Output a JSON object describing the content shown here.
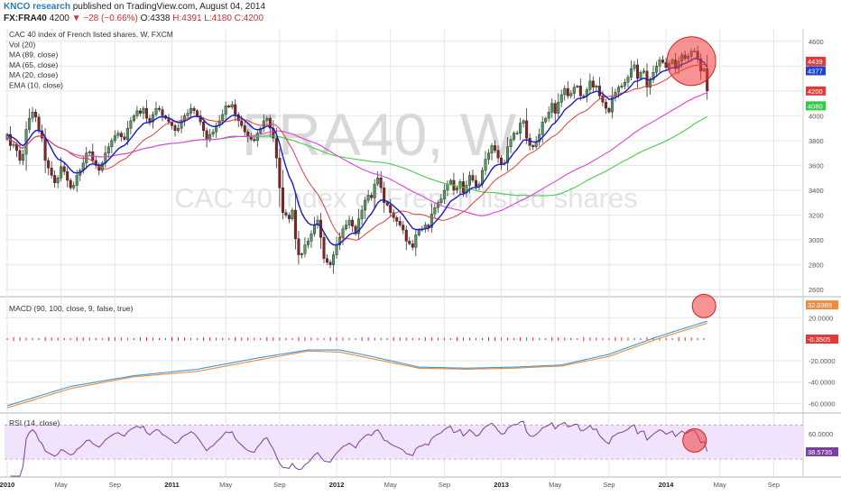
{
  "header": {
    "author": "KNCO research",
    "published": "published on TradingView.com, August 04, 2014",
    "symbol": "FX:FRA40",
    "last": "4200",
    "change": "▼ −28 (−0.66%)",
    "open": "O:4338",
    "high": "H:4391",
    "low": "L:4180",
    "close": "C:4200"
  },
  "watermark": {
    "big": "FRA40, W",
    "small": "CAC 40 index of French listed shares"
  },
  "legend": [
    "CAC 40 index of French listed shares, W, FXCM",
    "Vol (20)",
    "MA (89, close)",
    "MA (65, close)",
    "MA (20, close)",
    "EMA (10, close)"
  ],
  "macd_label": "MACD (90, 100, close, 9, false, true)",
  "rsi_label": "RSI (14, close)",
  "colors": {
    "up": "#4e9a5a",
    "down": "#8e1f1f",
    "ema10": "#1a1acc",
    "ma20": "#e04040",
    "ma65": "#e040e0",
    "ma89": "#4cc94c",
    "macd": "#3a9ad9",
    "signal": "#f08a3c",
    "hist": "#d32f2f",
    "rsi": "#7b3fa0",
    "circle": "#f03a3a",
    "grid": "#e6e6e6"
  },
  "chart_data": [
    {
      "type": "line",
      "title": "CAC 40 index of French listed shares, W, FXCM",
      "x_ticks": [
        "2010",
        "May",
        "Sep",
        "2011",
        "May",
        "Sep",
        "2012",
        "May",
        "Sep",
        "2013",
        "May",
        "Sep",
        "2014",
        "May",
        "Sep"
      ],
      "ylim": [
        2550,
        4700
      ],
      "y_ticks": [
        2600,
        2800,
        3000,
        3200,
        3400,
        3600,
        3800,
        4000,
        4200,
        4400,
        4600
      ],
      "price_labels": [
        {
          "value": "4439",
          "color": "#e53935"
        },
        {
          "value": "4377",
          "color": "#1e3fd8"
        },
        {
          "value": "4200",
          "color": "#e53935"
        },
        {
          "value": "4080",
          "color": "#2ecc40"
        }
      ],
      "date_range": [
        "2010-01",
        "2014-08"
      ],
      "series": [
        {
          "type": "candlestick",
          "close": [
            3850,
            3760,
            3770,
            3720,
            3640,
            3690,
            3890,
            3980,
            4030,
            3990,
            3880,
            3820,
            3640,
            3580,
            3520,
            3460,
            3500,
            3590,
            3550,
            3480,
            3420,
            3440,
            3520,
            3560,
            3620,
            3700,
            3710,
            3640,
            3600,
            3560,
            3620,
            3700,
            3750,
            3800,
            3840,
            3860,
            3830,
            3810,
            3900,
            3960,
            4000,
            4040,
            4020,
            4060,
            3980,
            3950,
            4010,
            4060,
            4050,
            4000,
            3980,
            3950,
            3920,
            3880,
            3900,
            3960,
            4000,
            4020,
            4060,
            4040,
            4000,
            3950,
            3880,
            3810,
            3850,
            3870,
            3920,
            3960,
            4010,
            4080,
            4070,
            4090,
            4010,
            3960,
            3920,
            3870,
            3830,
            3810,
            3800,
            3860,
            3900,
            3960,
            3980,
            3900,
            3820,
            3660,
            3420,
            3220,
            3200,
            3170,
            3240,
            3010,
            2880,
            2890,
            2960,
            2990,
            3050,
            3120,
            3160,
            3020,
            2850,
            2820,
            2800,
            2880,
            2960,
            3020,
            3090,
            3120,
            3160,
            3110,
            3050,
            3170,
            3240,
            3320,
            3360,
            3340,
            3450,
            3500,
            3420,
            3300,
            3280,
            3220,
            3180,
            3150,
            3120,
            3080,
            2990,
            2970,
            2940,
            3040,
            3080,
            3090,
            3120,
            3100,
            3210,
            3260,
            3300,
            3330,
            3400,
            3450,
            3480,
            3400,
            3420,
            3470,
            3380,
            3440,
            3520,
            3480,
            3430,
            3450,
            3560,
            3650,
            3700,
            3760,
            3720,
            3660,
            3610,
            3620,
            3750,
            3810,
            3860,
            3860,
            3940,
            3960,
            3820,
            3760,
            3750,
            3790,
            3850,
            3950,
            3980,
            4030,
            4100,
            4020,
            4110,
            4170,
            4220,
            4160,
            4180,
            4230,
            4240,
            4160,
            4160,
            4210,
            4280,
            4230,
            4240,
            4160,
            4110,
            4060,
            4030,
            4150,
            4190,
            4230,
            4240,
            4270,
            4310,
            4380,
            4410,
            4300,
            4350,
            4360,
            4230,
            4290,
            4350,
            4400,
            4450,
            4430,
            4390,
            4420,
            4450,
            4380,
            4440,
            4490,
            4460,
            4480,
            4520,
            4520,
            4460,
            4360,
            4380,
            4200
          ]
        },
        {
          "name": "EMA (10, close)"
        },
        {
          "name": "MA (20, close)"
        },
        {
          "name": "MA (65, close)"
        },
        {
          "name": "MA (89, close)"
        }
      ]
    },
    {
      "type": "line",
      "title": "MACD (90, 100, close, 9, false, true)",
      "ylim": [
        -68,
        38
      ],
      "y_ticks": [
        "20.0000",
        "-20.0000",
        "-40.0000",
        "-60.0000"
      ],
      "y_tick_values": [
        20,
        -20,
        -40,
        -60
      ],
      "value_labels": [
        {
          "value": "32.0389",
          "color": "#f08a3c"
        },
        {
          "value": "-0.3505",
          "color": "#e53935"
        }
      ],
      "series": [
        {
          "name": "MACD",
          "anchors": [
            [
              0,
              -62
            ],
            [
              20,
              -44
            ],
            [
              40,
              -34
            ],
            [
              60,
              -28
            ],
            [
              80,
              -17
            ],
            [
              95,
              -10
            ],
            [
              105,
              -10
            ],
            [
              115,
              -16
            ],
            [
              130,
              -26
            ],
            [
              145,
              -27
            ],
            [
              160,
              -26
            ],
            [
              175,
              -24
            ],
            [
              190,
              -14
            ],
            [
              205,
              2
            ],
            [
              220,
              16
            ],
            [
              235,
              27
            ],
            [
              245,
              32
            ],
            [
              252,
              33
            ]
          ]
        },
        {
          "name": "Signal",
          "anchors": [
            [
              0,
              -64
            ],
            [
              20,
              -46
            ],
            [
              40,
              -35
            ],
            [
              60,
              -30
            ],
            [
              80,
              -19
            ],
            [
              95,
              -11
            ],
            [
              105,
              -12
            ],
            [
              115,
              -18
            ],
            [
              130,
              -27
            ],
            [
              145,
              -28
            ],
            [
              160,
              -27
            ],
            [
              175,
              -25
            ],
            [
              190,
              -16
            ],
            [
              205,
              0
            ],
            [
              220,
              14
            ],
            [
              235,
              26
            ],
            [
              245,
              31
            ],
            [
              252,
              32
            ]
          ]
        }
      ]
    },
    {
      "type": "line",
      "title": "RSI (14, close)",
      "ylim": [
        10,
        82
      ],
      "y_ticks": [
        "60.0000"
      ],
      "y_tick_values": [
        60
      ],
      "value_labels": [
        {
          "value": "38.5735",
          "color": "#7b3fa0"
        }
      ],
      "band": [
        30,
        70
      ],
      "series": [
        {
          "name": "RSI (14, close)"
        }
      ]
    }
  ]
}
